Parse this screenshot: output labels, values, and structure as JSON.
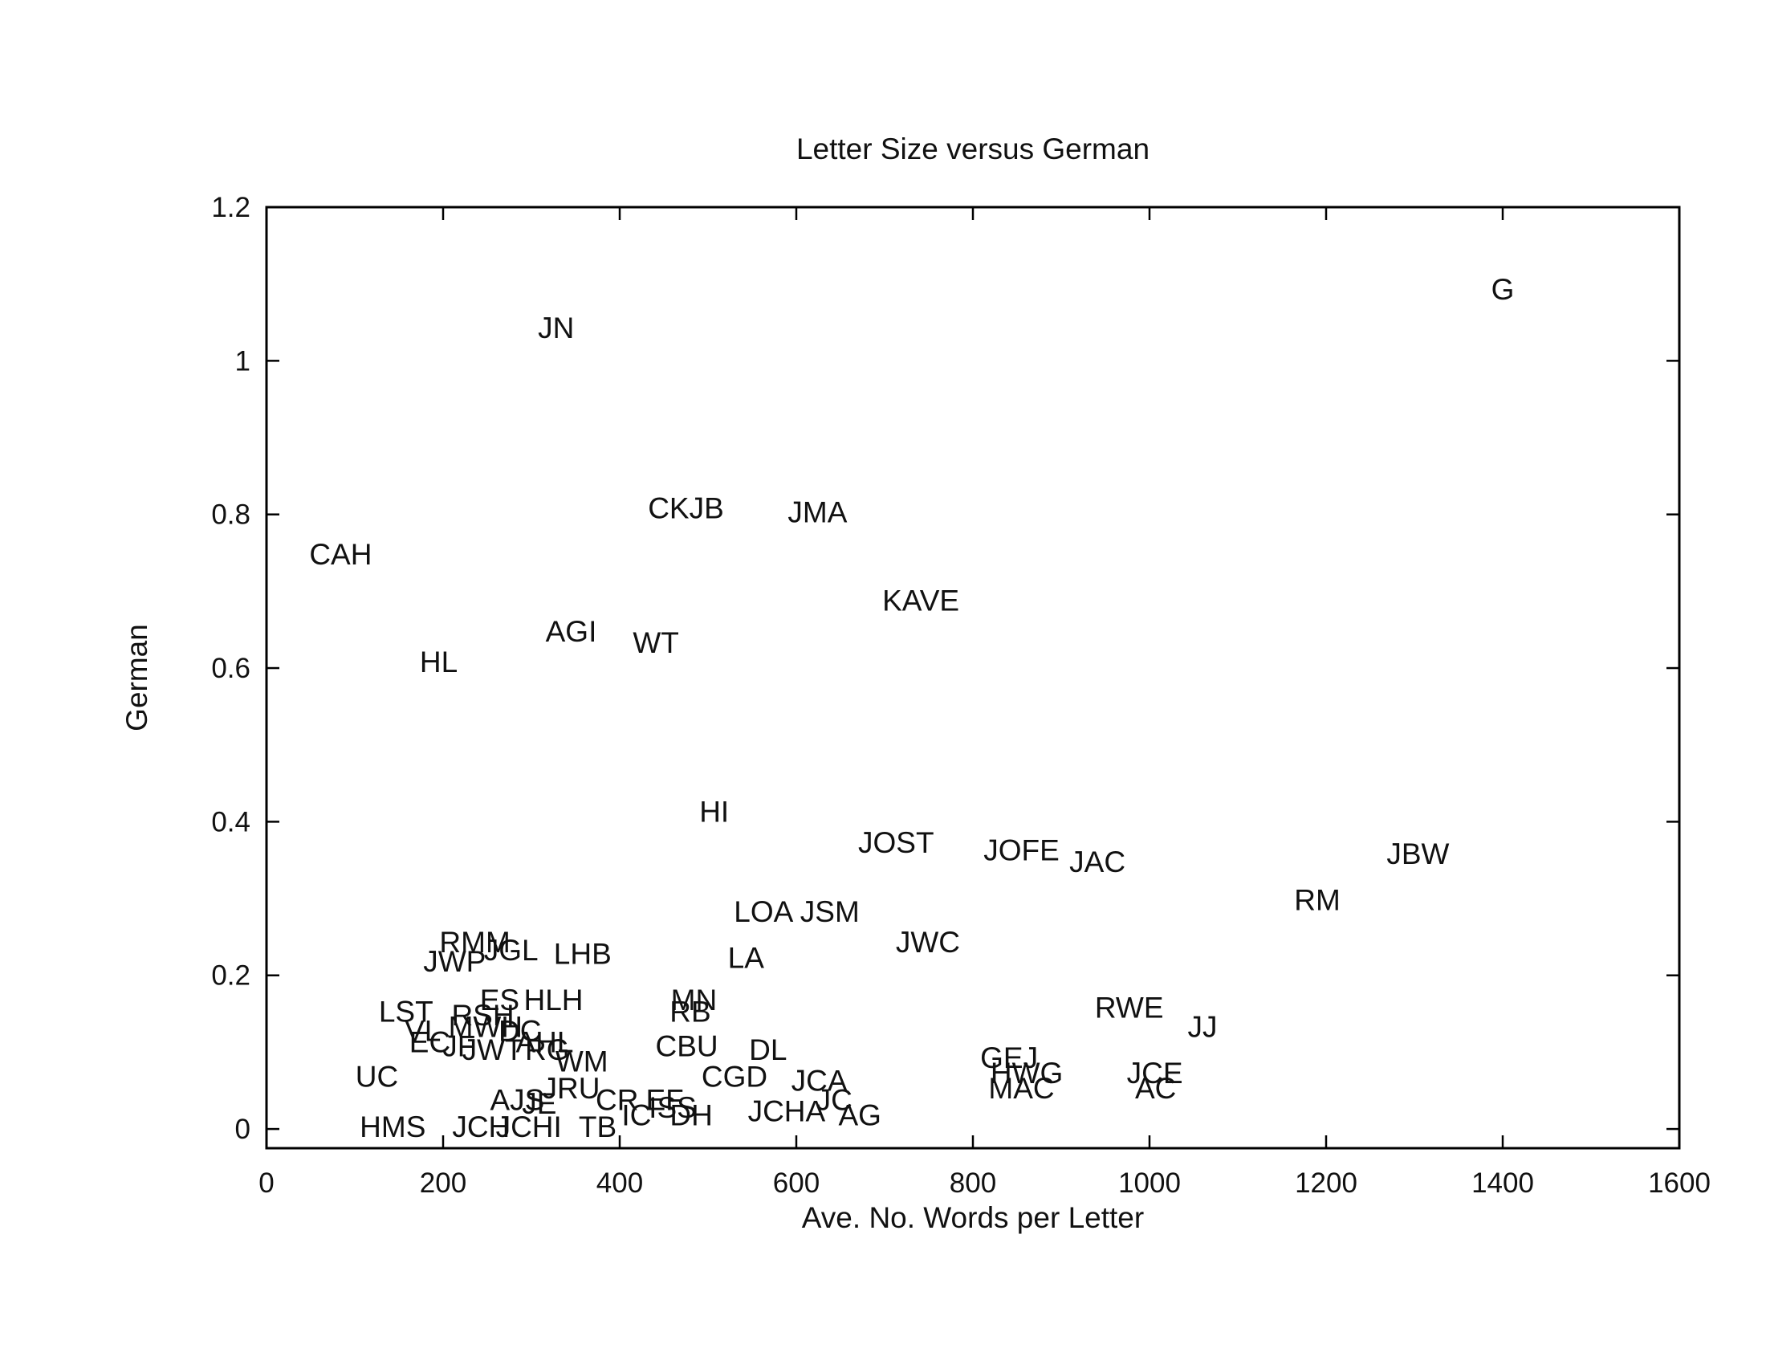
{
  "chart_data": {
    "type": "scatter",
    "title": "Letter Size versus German",
    "xlabel": "Ave. No. Words per Letter",
    "ylabel": "German",
    "xlim": [
      0,
      1600
    ],
    "ylim": [
      -0.025,
      1.2
    ],
    "xticks": [
      "0",
      "200",
      "400",
      "600",
      "800",
      "1000",
      "1200",
      "1400",
      "1600"
    ],
    "yticks": [
      "0",
      "0.2",
      "0.4",
      "0.6",
      "0.8",
      "1",
      "1.2"
    ],
    "grid": false,
    "legend": "none",
    "marker": "text-label",
    "points": [
      {
        "label": "G",
        "x": 1400,
        "y": 1.09
      },
      {
        "label": "JN",
        "x": 328,
        "y": 1.04
      },
      {
        "label": "CKJB",
        "x": 475,
        "y": 0.805
      },
      {
        "label": "JMA",
        "x": 624,
        "y": 0.8
      },
      {
        "label": "CAH",
        "x": 84,
        "y": 0.745
      },
      {
        "label": "KAVE",
        "x": 741,
        "y": 0.685
      },
      {
        "label": "AGI",
        "x": 345,
        "y": 0.645
      },
      {
        "label": "WT",
        "x": 441,
        "y": 0.63
      },
      {
        "label": "HL",
        "x": 195,
        "y": 0.605
      },
      {
        "label": "HI",
        "x": 507,
        "y": 0.41
      },
      {
        "label": "JOST",
        "x": 713,
        "y": 0.37
      },
      {
        "label": "JOFE",
        "x": 855,
        "y": 0.36
      },
      {
        "label": "JAC",
        "x": 941,
        "y": 0.345
      },
      {
        "label": "JBW",
        "x": 1304,
        "y": 0.355
      },
      {
        "label": "RM",
        "x": 1190,
        "y": 0.295
      },
      {
        "label": "LOA",
        "x": 563,
        "y": 0.28
      },
      {
        "label": "JSM",
        "x": 638,
        "y": 0.28
      },
      {
        "label": "JWC",
        "x": 749,
        "y": 0.24
      },
      {
        "label": "RMM",
        "x": 236,
        "y": 0.24
      },
      {
        "label": "JGL",
        "x": 277,
        "y": 0.23
      },
      {
        "label": "LHB",
        "x": 358,
        "y": 0.225
      },
      {
        "label": "LA",
        "x": 543,
        "y": 0.22
      },
      {
        "label": "JWP",
        "x": 213,
        "y": 0.215
      },
      {
        "label": "MN",
        "x": 484,
        "y": 0.165
      },
      {
        "label": "ES",
        "x": 264,
        "y": 0.165
      },
      {
        "label": "HLH",
        "x": 325,
        "y": 0.165
      },
      {
        "label": "RB",
        "x": 480,
        "y": 0.15
      },
      {
        "label": "RWE",
        "x": 977,
        "y": 0.155
      },
      {
        "label": "LST",
        "x": 158,
        "y": 0.15
      },
      {
        "label": "RSH",
        "x": 245,
        "y": 0.145
      },
      {
        "label": "JJ",
        "x": 1060,
        "y": 0.13
      },
      {
        "label": "MWH",
        "x": 248,
        "y": 0.13
      },
      {
        "label": "DC",
        "x": 287,
        "y": 0.125
      },
      {
        "label": "VL",
        "x": 177,
        "y": 0.125
      },
      {
        "label": "EC",
        "x": 185,
        "y": 0.11
      },
      {
        "label": "JF",
        "x": 218,
        "y": 0.105
      },
      {
        "label": "AHL",
        "x": 315,
        "y": 0.11
      },
      {
        "label": "CBU",
        "x": 476,
        "y": 0.105
      },
      {
        "label": "JWT",
        "x": 256,
        "y": 0.1
      },
      {
        "label": "RG",
        "x": 318,
        "y": 0.1
      },
      {
        "label": "DL",
        "x": 568,
        "y": 0.1
      },
      {
        "label": "WM",
        "x": 357,
        "y": 0.085
      },
      {
        "label": "GEJ",
        "x": 841,
        "y": 0.09
      },
      {
        "label": "HWG",
        "x": 861,
        "y": 0.07
      },
      {
        "label": "JCE",
        "x": 1006,
        "y": 0.07
      },
      {
        "label": "UC",
        "x": 125,
        "y": 0.065
      },
      {
        "label": "CGD",
        "x": 530,
        "y": 0.065
      },
      {
        "label": "JCA",
        "x": 626,
        "y": 0.06
      },
      {
        "label": "MAC",
        "x": 855,
        "y": 0.05
      },
      {
        "label": "AC",
        "x": 1007,
        "y": 0.05
      },
      {
        "label": "JRU",
        "x": 345,
        "y": 0.05
      },
      {
        "label": "JC",
        "x": 643,
        "y": 0.035
      },
      {
        "label": "CR",
        "x": 397,
        "y": 0.035
      },
      {
        "label": "EF",
        "x": 451,
        "y": 0.035
      },
      {
        "label": "AJS",
        "x": 284,
        "y": 0.035
      },
      {
        "label": "JE",
        "x": 309,
        "y": 0.03
      },
      {
        "label": "ISS",
        "x": 460,
        "y": 0.025
      },
      {
        "label": "IC",
        "x": 419,
        "y": 0.015
      },
      {
        "label": "JCHA",
        "x": 589,
        "y": 0.02
      },
      {
        "label": "DH",
        "x": 481,
        "y": 0.015
      },
      {
        "label": "AG",
        "x": 672,
        "y": 0.015
      },
      {
        "label": "HMS",
        "x": 143,
        "y": 0
      },
      {
        "label": "JCH",
        "x": 243,
        "y": 0
      },
      {
        "label": "JCHI",
        "x": 297,
        "y": 0
      },
      {
        "label": "TB",
        "x": 375,
        "y": 0
      }
    ]
  }
}
